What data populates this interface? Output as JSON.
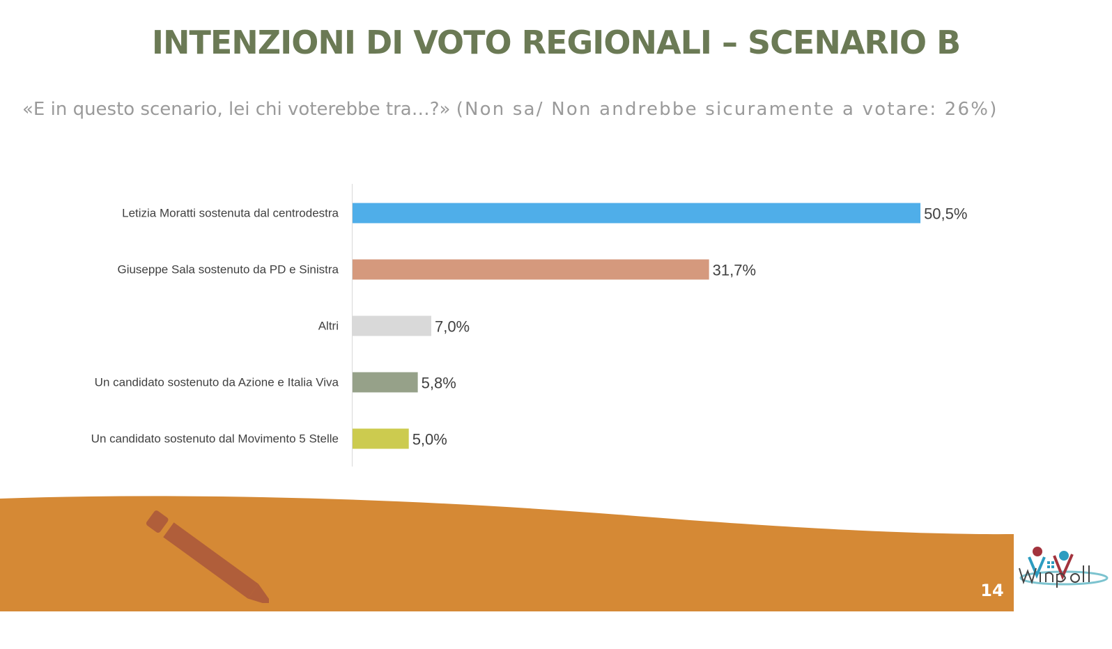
{
  "slide": {
    "title": "INTENZIONI DI VOTO REGIONALI – SCENARIO B",
    "question": "«E in questo scenario, lei chi voterebbe tra…?»",
    "question_note": "(Non sa/ Non andrebbe sicuramente a votare: 26%)",
    "page_number": "14",
    "logo_text": "Winpoll"
  },
  "colors": {
    "title": "#6b7a55",
    "footer": "#d58935",
    "pencil": "#b05e3a"
  },
  "chart_data": {
    "type": "bar",
    "orientation": "horizontal",
    "categories": [
      "Letizia Moratti sostenuta dal centrodestra",
      "Giuseppe Sala sostenuto da PD e Sinistra",
      "Altri",
      "Un candidato sostenuto da Azione e Italia Viva",
      "Un candidato sostenuto dal Movimento 5 Stelle"
    ],
    "values": [
      50.5,
      31.7,
      7.0,
      5.8,
      5.0
    ],
    "value_labels": [
      "50,5%",
      "31,7%",
      "7,0%",
      "5,8%",
      "5,0%"
    ],
    "bar_colors": [
      "#4faee9",
      "#d5997d",
      "#d9d9d9",
      "#96a189",
      "#cccb4f"
    ],
    "grid": false,
    "legend": "none"
  }
}
